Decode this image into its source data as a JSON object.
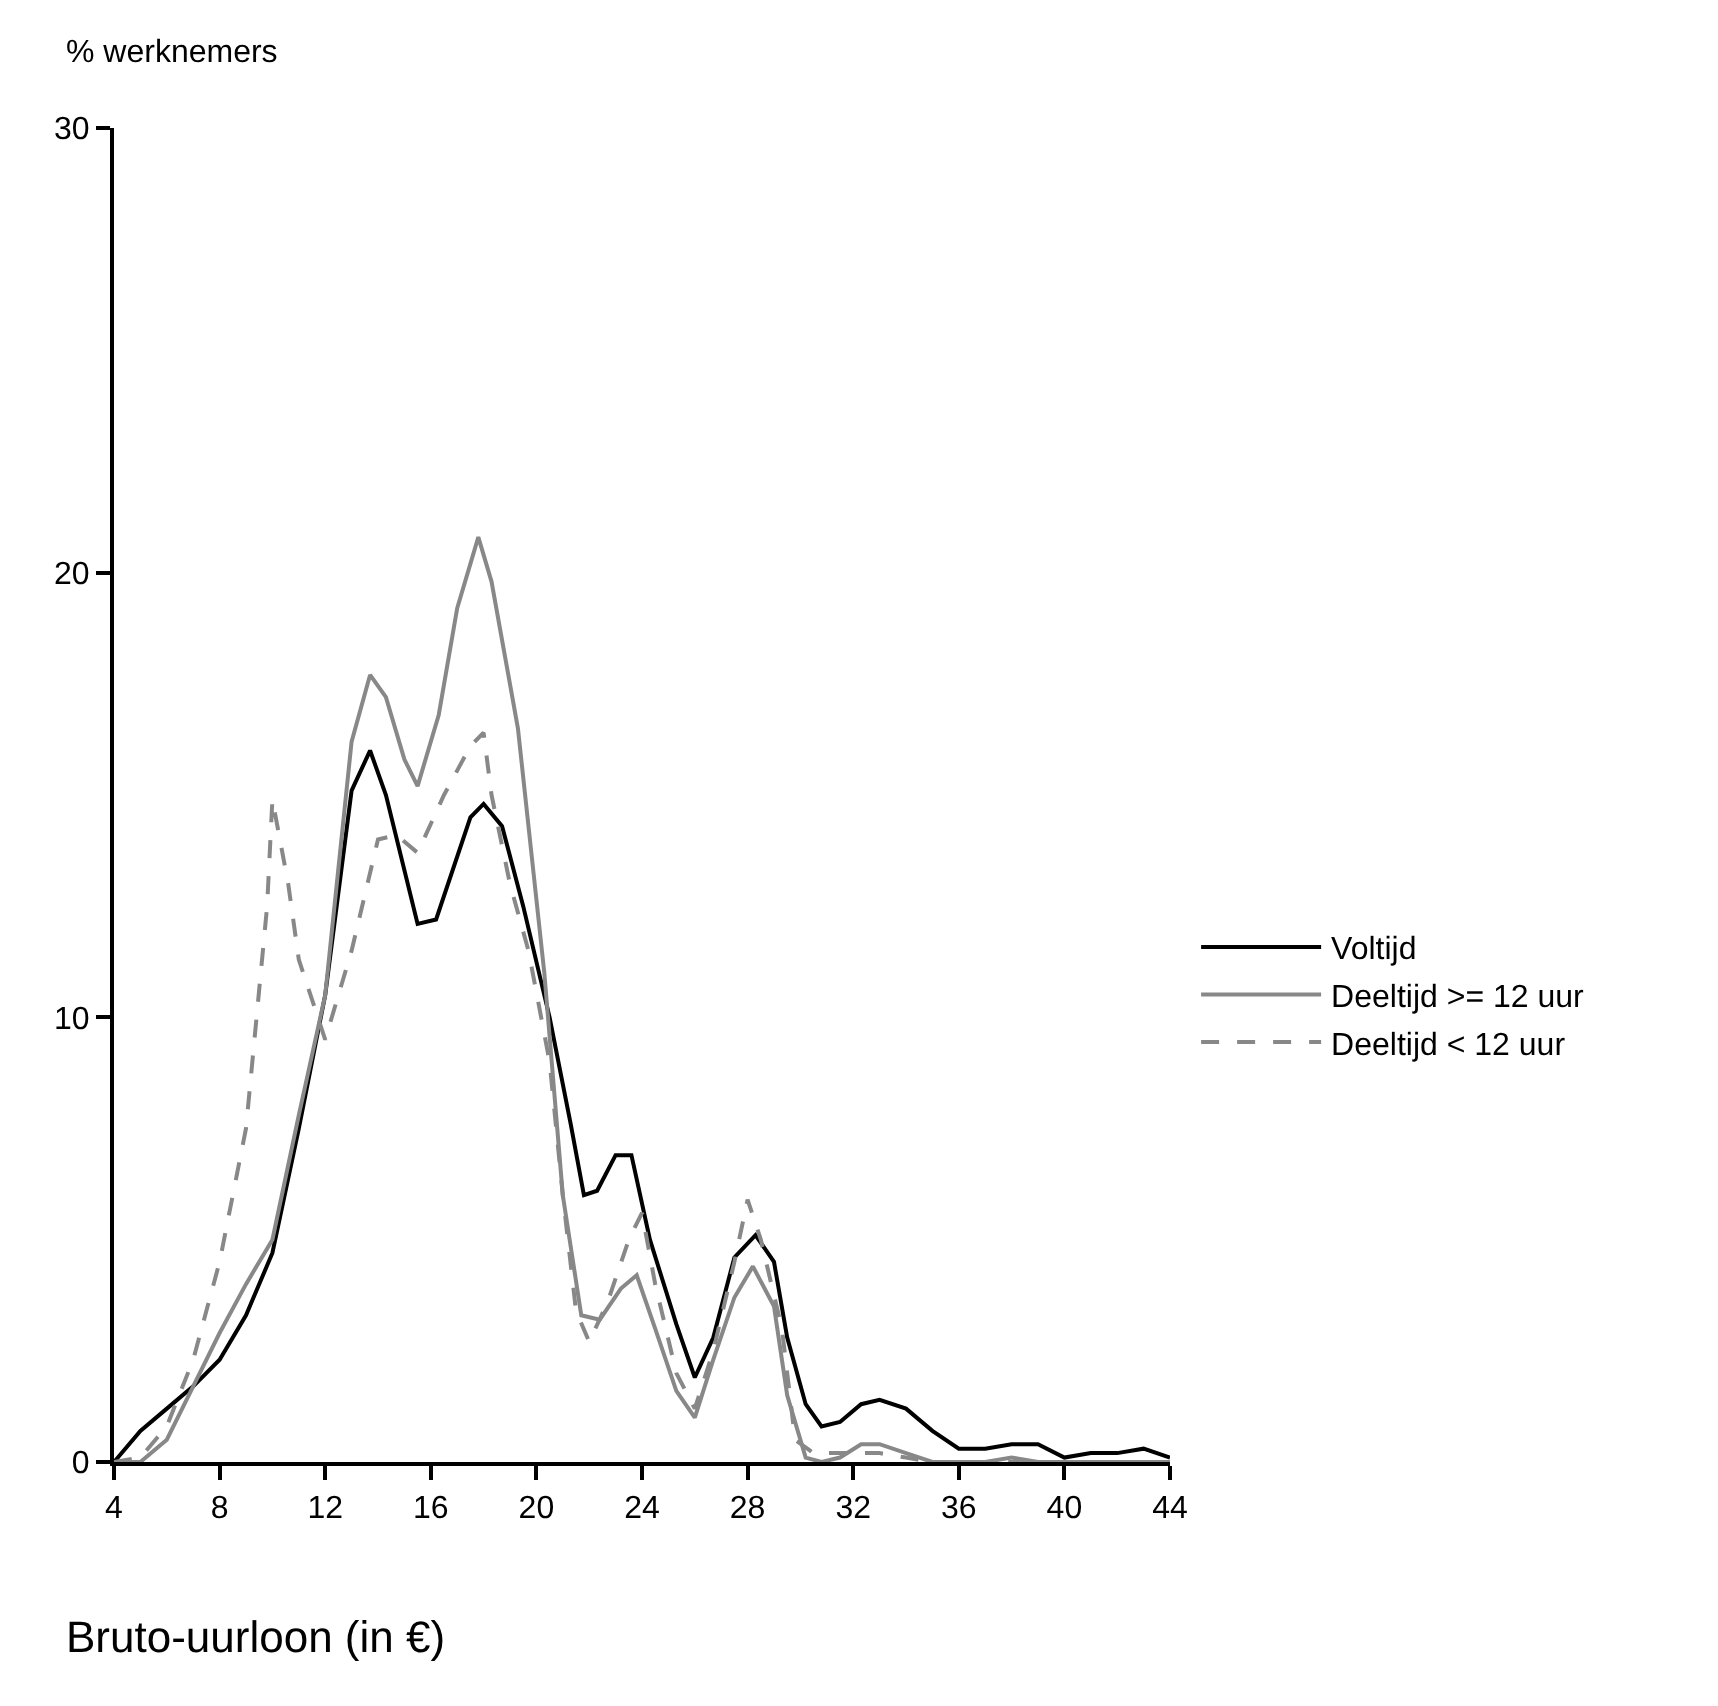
{
  "chart_data": {
    "type": "line",
    "xlabel": "Bruto-uurloon (in €)",
    "ylabel": "% werknemers",
    "xlim": [
      4,
      44
    ],
    "xticks": [
      4,
      8,
      12,
      16,
      20,
      24,
      28,
      32,
      36,
      40,
      44
    ],
    "ylim": [
      0,
      30
    ],
    "yticks": [
      0,
      10,
      20,
      30
    ],
    "legend": "right",
    "marker": "none",
    "series": [
      {
        "name": "Voltijd",
        "color": "#000000",
        "line_style": "solid",
        "x": [
          4,
          5,
          6,
          7,
          8,
          9,
          10,
          11,
          12,
          13,
          13.7,
          14.3,
          15.5,
          16.2,
          17.5,
          18,
          18.7,
          19.5,
          20.5,
          21.3,
          21.8,
          22.3,
          23,
          23.6,
          24.3,
          25.3,
          26,
          26.7,
          27.5,
          28.3,
          29,
          29.5,
          30.2,
          30.8,
          31.5,
          32.3,
          33,
          34,
          35,
          36,
          37,
          38,
          39,
          40,
          41,
          42,
          43,
          44
        ],
        "values": [
          0,
          0.7,
          1.2,
          1.7,
          2.3,
          3.3,
          4.7,
          7.5,
          10.5,
          15.1,
          16.0,
          15.0,
          12.1,
          12.2,
          14.5,
          14.8,
          14.3,
          12.5,
          10,
          7.6,
          6.0,
          6.1,
          6.9,
          6.9,
          5,
          3.1,
          1.9,
          2.8,
          4.6,
          5.1,
          4.5,
          2.8,
          1.3,
          0.8,
          0.9,
          1.3,
          1.4,
          1.2,
          0.7,
          0.3,
          0.3,
          0.4,
          0.4,
          0.1,
          0.2,
          0.2,
          0.3,
          0.1
        ]
      },
      {
        "name": "Deeltijd >= 12 uur",
        "color": "#888888",
        "line_style": "solid",
        "x": [
          4,
          5,
          6,
          7,
          8,
          9,
          10,
          11,
          12,
          13,
          13.7,
          14.3,
          15,
          15.5,
          16.3,
          17,
          17.8,
          18.3,
          19.3,
          20.3,
          21,
          21.7,
          22.4,
          23.2,
          23.8,
          24.5,
          25.3,
          26,
          26.7,
          27.5,
          28.2,
          29,
          29.5,
          30.2,
          30.8,
          31.5,
          32.3,
          33,
          34,
          35,
          36,
          37,
          38,
          39,
          40,
          41,
          42,
          43,
          44
        ],
        "values": [
          0,
          0,
          0.5,
          1.7,
          2.9,
          4,
          5,
          7.8,
          10.5,
          16.2,
          17.7,
          17.2,
          15.8,
          15.2,
          16.8,
          19.2,
          20.8,
          19.8,
          16.5,
          11,
          6,
          3.3,
          3.2,
          3.9,
          4.2,
          3,
          1.6,
          1.0,
          2.3,
          3.7,
          4.4,
          3.5,
          1.5,
          0.1,
          0,
          0.1,
          0.4,
          0.4,
          0.2,
          0,
          0,
          0,
          0.1,
          0,
          0,
          0,
          0,
          0,
          0
        ]
      },
      {
        "name": "Deeltijd < 12 uur",
        "color": "#888888",
        "line_style": "dashed",
        "x": [
          4,
          5,
          6,
          7,
          8,
          9,
          9.8,
          10,
          10.6,
          11,
          12,
          13,
          14,
          14.7,
          15.5,
          16.5,
          17.5,
          18,
          18.3,
          19,
          19.7,
          20.5,
          21,
          21.5,
          22,
          22.7,
          23.5,
          24,
          24.5,
          25.3,
          26,
          26.7,
          27.5,
          28,
          28.5,
          29.3,
          29.8,
          30.5,
          31.5,
          33,
          34,
          35,
          36,
          37,
          38,
          39,
          40,
          41,
          42,
          43,
          44
        ],
        "values": [
          0,
          0.1,
          0.8,
          2.3,
          4.5,
          7.5,
          12.5,
          14.9,
          13,
          11.3,
          9.5,
          11.5,
          14.0,
          14.1,
          13.7,
          15,
          16.1,
          16.4,
          15,
          13,
          11.5,
          9,
          6,
          3.4,
          2.7,
          3.6,
          5,
          5.6,
          4,
          2,
          1.2,
          2.5,
          4.5,
          5.9,
          5,
          3,
          0.5,
          0.2,
          0.2,
          0.2,
          0.1,
          0,
          0,
          0,
          0,
          0,
          0,
          0,
          0,
          0,
          0
        ]
      }
    ]
  }
}
